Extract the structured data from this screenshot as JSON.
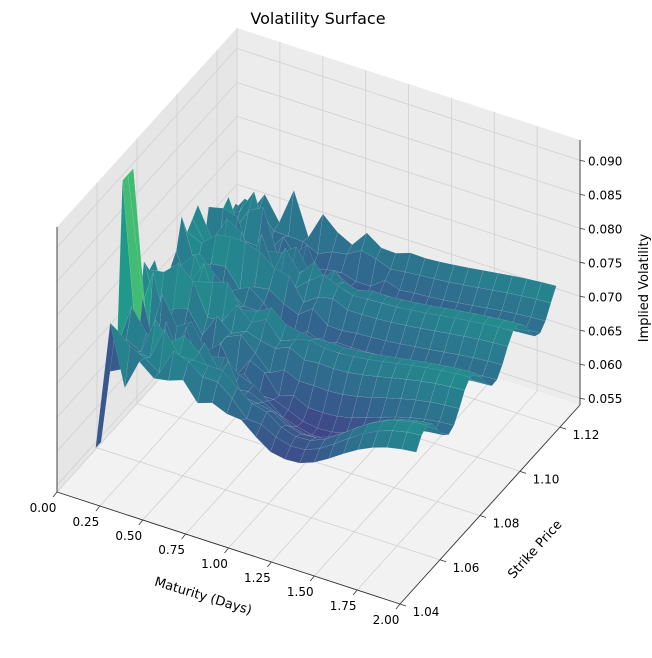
{
  "chart_data": {
    "type": "surface3d",
    "title": "Volatility Surface",
    "xlabel": "Maturity (Days)",
    "ylabel": "Strike Price",
    "zlabel": "Implied Volatility",
    "xlim": [
      0,
      2
    ],
    "ylim": [
      1.04,
      1.13
    ],
    "zlim": [
      0.054,
      0.093
    ],
    "x_ticks": [
      "0.00",
      "0.25",
      "0.50",
      "0.75",
      "1.00",
      "1.25",
      "1.50",
      "1.75",
      "2.00"
    ],
    "y_ticks": [
      "1.04",
      "1.06",
      "1.08",
      "1.10",
      "1.12"
    ],
    "z_ticks": [
      "0.055",
      "0.060",
      "0.065",
      "0.070",
      "0.075",
      "0.080",
      "0.085",
      "0.090"
    ],
    "colormap": "viridis",
    "grid": true,
    "surface_summary": {
      "min_iv": 0.055,
      "max_iv": 0.092,
      "peak_location": {
        "maturity": 0.05,
        "strike": 1.06
      },
      "pattern": "noisy short-maturity region, smooth undulating ridges at longer maturities"
    }
  }
}
